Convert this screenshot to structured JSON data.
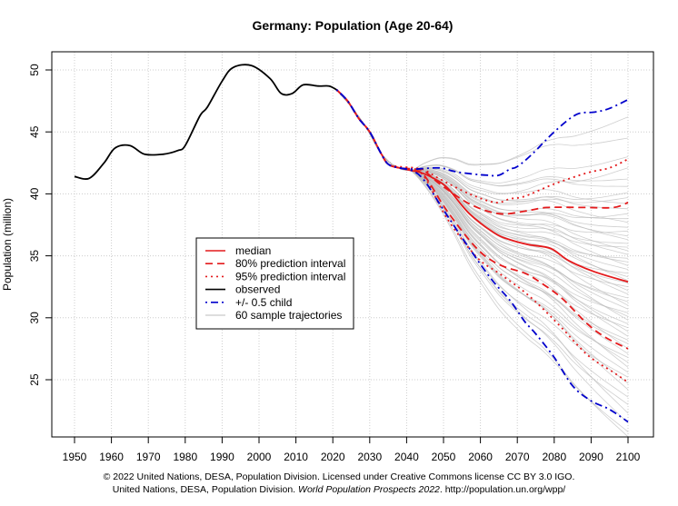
{
  "chart_data": {
    "type": "line",
    "title": "Germany: Population (Age 20-64)",
    "xlabel": "",
    "ylabel": "Population (million)",
    "xlim": [
      1944,
      2107
    ],
    "ylim": [
      20.3,
      51.5
    ],
    "x_ticks": [
      1950,
      1960,
      1970,
      1980,
      1990,
      2000,
      2010,
      2020,
      2030,
      2040,
      2050,
      2060,
      2070,
      2080,
      2090,
      2100
    ],
    "y_ticks": [
      25,
      30,
      35,
      40,
      45,
      50
    ],
    "grid": true,
    "legend_position": "center-left",
    "legend": [
      {
        "label": "median",
        "color": "#e41a1c",
        "style": "solid"
      },
      {
        "label": "80% prediction interval",
        "color": "#e41a1c",
        "style": "dashed"
      },
      {
        "label": "95% prediction interval",
        "color": "#e41a1c",
        "style": "dotted"
      },
      {
        "label": "observed",
        "color": "#000000",
        "style": "solid"
      },
      {
        "label": "+/- 0.5 child",
        "color": "#0000cc",
        "style": "dashdot"
      },
      {
        "label": "60 sample trajectories",
        "color": "#bbbbbb",
        "style": "solid"
      }
    ],
    "series": [
      {
        "name": "observed",
        "color": "#000000",
        "style": "solid",
        "x": [
          1950,
          1954,
          1958,
          1961,
          1965,
          1969,
          1974,
          1978,
          1980,
          1984,
          1986,
          1990,
          1993,
          1998,
          2003,
          2006,
          2009,
          2012,
          2016,
          2019,
          2021
        ],
        "y": [
          41.4,
          41.25,
          42.5,
          43.7,
          43.9,
          43.2,
          43.2,
          43.5,
          43.9,
          46.3,
          47.0,
          49.1,
          50.2,
          50.35,
          49.3,
          48.1,
          48.1,
          48.8,
          48.7,
          48.7,
          48.4
        ]
      },
      {
        "name": "+/- 0.5 child (upper)",
        "color": "#0000cc",
        "style": "dashdot",
        "x": [
          2021,
          2024,
          2027,
          2030,
          2033,
          2035,
          2038,
          2042,
          2049,
          2053,
          2058,
          2062,
          2065,
          2068,
          2070,
          2074,
          2080,
          2086,
          2091,
          2095,
          2100
        ],
        "y": [
          48.4,
          47.5,
          46.1,
          45.0,
          43.3,
          42.4,
          42.1,
          42.0,
          42.1,
          41.8,
          41.6,
          41.5,
          41.5,
          42.0,
          42.2,
          43.2,
          45.0,
          46.4,
          46.6,
          46.9,
          47.6
        ]
      },
      {
        "name": "+/- 0.5 child (lower)",
        "color": "#0000cc",
        "style": "dashdot",
        "x": [
          2021,
          2024,
          2027,
          2030,
          2033,
          2035,
          2038,
          2042,
          2045,
          2050,
          2057,
          2063,
          2068,
          2072,
          2075,
          2080,
          2085,
          2090,
          2095,
          2100
        ],
        "y": [
          48.4,
          47.5,
          46.1,
          45.0,
          43.3,
          42.4,
          42.1,
          41.8,
          41.0,
          38.7,
          35.6,
          33.1,
          31.4,
          29.7,
          28.7,
          26.8,
          24.5,
          23.3,
          22.6,
          21.6
        ]
      },
      {
        "name": "95% PI (upper)",
        "color": "#e41a1c",
        "style": "dotted",
        "x": [
          2021,
          2024,
          2027,
          2030,
          2033,
          2035,
          2038,
          2042,
          2045,
          2049,
          2057,
          2064,
          2068,
          2072,
          2080,
          2089,
          2095,
          2100
        ],
        "y": [
          48.4,
          47.5,
          46.1,
          45.0,
          43.3,
          42.4,
          42.2,
          42.1,
          41.9,
          41.2,
          40.0,
          39.3,
          39.6,
          39.8,
          40.8,
          41.7,
          42.1,
          42.8
        ]
      },
      {
        "name": "80% PI (upper)",
        "color": "#e41a1c",
        "style": "dashed",
        "x": [
          2021,
          2024,
          2027,
          2030,
          2033,
          2035,
          2038,
          2042,
          2045,
          2049,
          2057,
          2065,
          2072,
          2078,
          2088,
          2096,
          2100
        ],
        "y": [
          48.4,
          47.5,
          46.1,
          45.0,
          43.3,
          42.4,
          42.1,
          42.0,
          41.8,
          40.8,
          39.2,
          38.4,
          38.6,
          38.9,
          38.9,
          38.9,
          39.3
        ]
      },
      {
        "name": "median",
        "color": "#e41a1c",
        "style": "solid",
        "x": [
          2021,
          2024,
          2027,
          2030,
          2033,
          2035,
          2038,
          2041,
          2044,
          2047,
          2051,
          2057,
          2064,
          2068,
          2073,
          2079,
          2084,
          2091,
          2100
        ],
        "y": [
          48.4,
          47.5,
          46.1,
          45.0,
          43.3,
          42.4,
          42.1,
          41.9,
          41.7,
          41.3,
          40.5,
          38.4,
          36.8,
          36.3,
          35.9,
          35.6,
          34.6,
          33.7,
          32.9
        ]
      },
      {
        "name": "80% PI (lower)",
        "color": "#e41a1c",
        "style": "dashed",
        "x": [
          2021,
          2024,
          2027,
          2030,
          2033,
          2035,
          2038,
          2042,
          2045,
          2051,
          2059,
          2065,
          2072,
          2076,
          2082,
          2089,
          2094,
          2100
        ],
        "y": [
          48.4,
          47.5,
          46.1,
          45.0,
          43.3,
          42.4,
          42.1,
          41.9,
          41.4,
          38.6,
          35.6,
          34.3,
          33.6,
          32.9,
          31.6,
          29.5,
          28.4,
          27.5
        ]
      },
      {
        "name": "95% PI (lower)",
        "color": "#e41a1c",
        "style": "dotted",
        "x": [
          2021,
          2024,
          2027,
          2030,
          2033,
          2035,
          2038,
          2042,
          2045,
          2051,
          2059,
          2065,
          2071,
          2076,
          2082,
          2089,
          2096,
          2100
        ],
        "y": [
          48.4,
          47.5,
          46.1,
          45.0,
          43.3,
          42.4,
          42.1,
          41.9,
          41.3,
          38.0,
          34.9,
          33.6,
          32.3,
          31.0,
          29.2,
          27.0,
          25.6,
          24.8
        ]
      }
    ],
    "sample_trajectories": {
      "count": 60,
      "color": "#bbbbbb",
      "x": [
        2021,
        2030,
        2040,
        2045,
        2060,
        2080,
        2100
      ],
      "start": [
        48.4,
        45.0,
        42.0,
        41.7
      ],
      "end_values_2100": [
        46.2,
        44.5,
        43.0,
        42.1,
        41.2,
        40.6,
        40.1,
        39.7,
        39.2,
        38.8,
        38.4,
        38.0,
        37.7,
        37.3,
        37.0,
        36.6,
        36.3,
        36.0,
        35.7,
        35.4,
        35.1,
        34.8,
        34.5,
        34.2,
        33.9,
        33.6,
        33.3,
        33.0,
        32.8,
        32.5,
        32.2,
        31.9,
        31.6,
        31.3,
        31.0,
        30.7,
        30.4,
        30.1,
        29.8,
        29.5,
        29.2,
        28.9,
        28.5,
        28.2,
        27.9,
        27.5,
        27.1,
        26.8,
        26.4,
        26.0,
        25.6,
        25.2,
        24.7,
        24.2,
        23.6,
        23.0,
        22.3,
        21.5,
        20.8,
        20.4
      ]
    }
  },
  "footer": {
    "line1": "© 2022 United Nations, DESA, Population Division. Licensed under Creative Commons license CC BY 3.0 IGO.",
    "line2_prefix": "United Nations, DESA, Population Division. ",
    "line2_italic": "World Population Prospects 2022",
    "line2_suffix": ". http://population.un.org/wpp/"
  }
}
